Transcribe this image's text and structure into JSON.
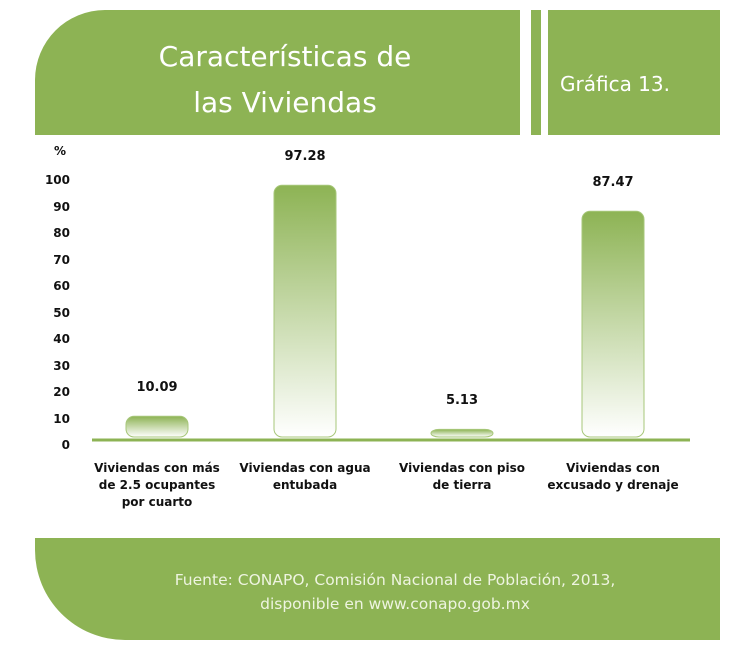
{
  "header": {
    "badge": "Gráfica 13."
  },
  "chart_data": {
    "type": "bar",
    "title": "Características de las Viviendas",
    "y_label": "%",
    "categories": [
      "Viviendas con más de 2.5 ocupantes por cuarto",
      "Viviendas con agua entubada",
      "Viviendas con piso de tierra",
      "Viviendas con excusado y drenaje"
    ],
    "values": [
      10.09,
      97.28,
      5.13,
      87.47
    ],
    "color": "#8db354",
    "ylim": [
      0,
      100
    ],
    "yticks": [
      0,
      10,
      20,
      30,
      40,
      50,
      60,
      70,
      80,
      90,
      100
    ]
  },
  "footer": {
    "source": "Fuente: CONAPO, Comisión Nacional de Población, 2013, disponible en www.conapo.gob.mx"
  }
}
